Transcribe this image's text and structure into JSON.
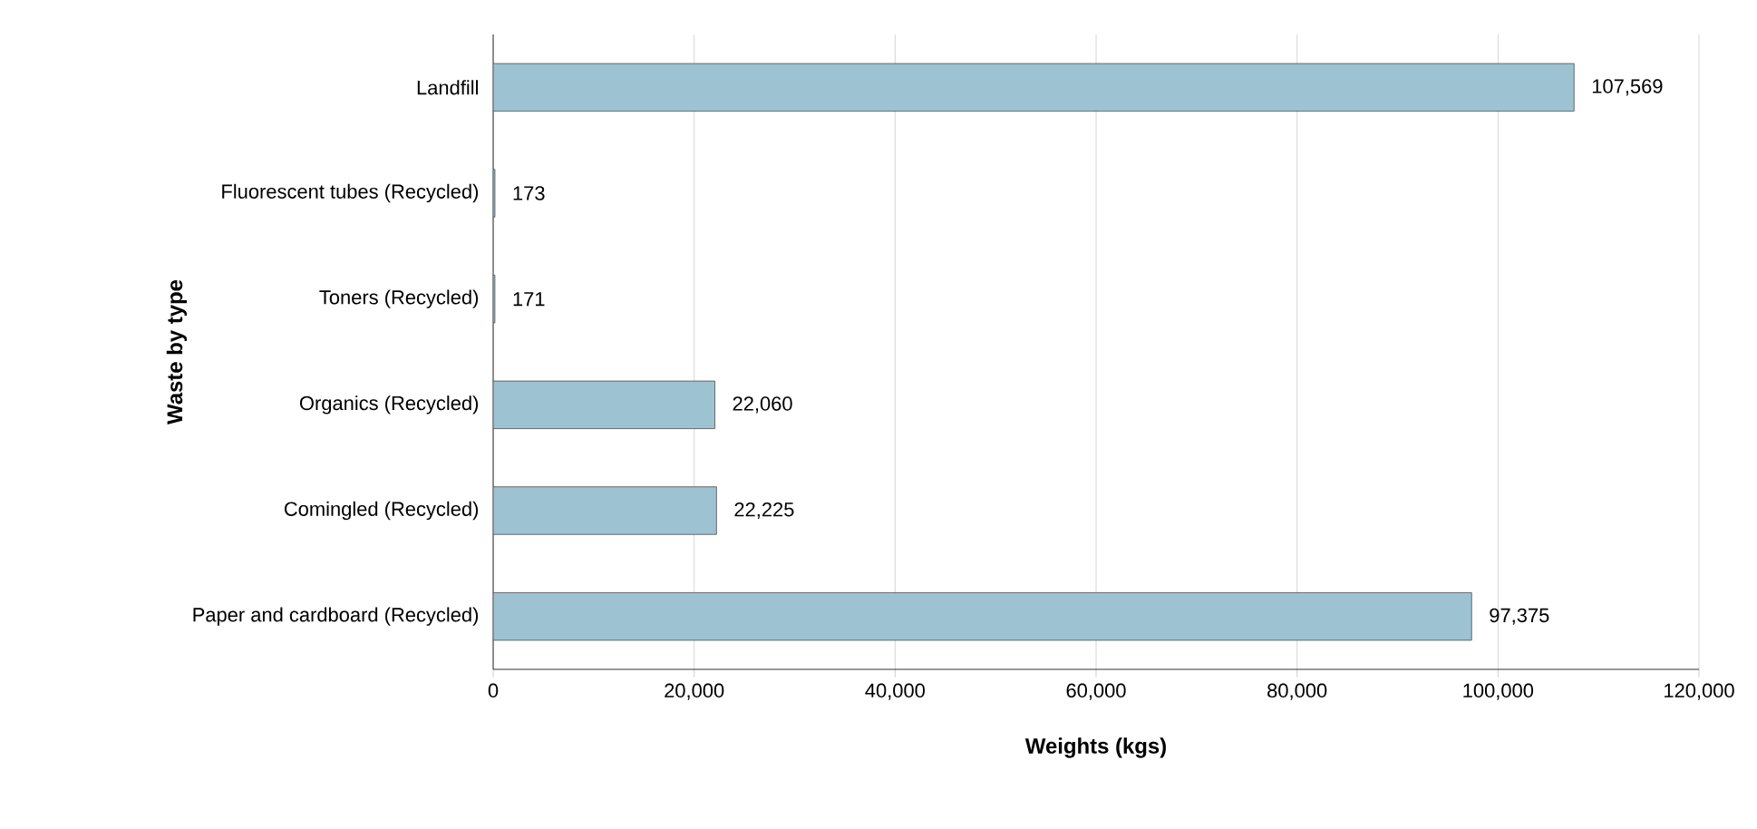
{
  "chart_data": {
    "type": "bar",
    "orientation": "horizontal",
    "xlabel": "Weights (kgs)",
    "ylabel": "Waste by type",
    "categories": [
      "Landfill",
      "Fluorescent tubes (Recycled)",
      "Toners (Recycled)",
      "Organics (Recycled)",
      "Comingled (Recycled)",
      "Paper and cardboard (Recycled)"
    ],
    "values": [
      107569,
      173,
      171,
      22060,
      22225,
      97375
    ],
    "value_labels": [
      "107,569",
      "173",
      "171",
      "22,060",
      "22,225",
      "97,375"
    ],
    "color": "#9dc3d3",
    "xlim": [
      0,
      120000
    ],
    "xticks": [
      0,
      {
        "value": 20000,
        "label": "20,000"
      },
      {
        "value": 40000,
        "label": "40,000"
      },
      {
        "value": 60000,
        "label": "60,000"
      },
      {
        "value": 80000,
        "label": "80,000"
      },
      {
        "value": 100000,
        "label": "100,000"
      },
      {
        "value": 120000,
        "label": "120,000"
      }
    ],
    "grid": "x"
  }
}
